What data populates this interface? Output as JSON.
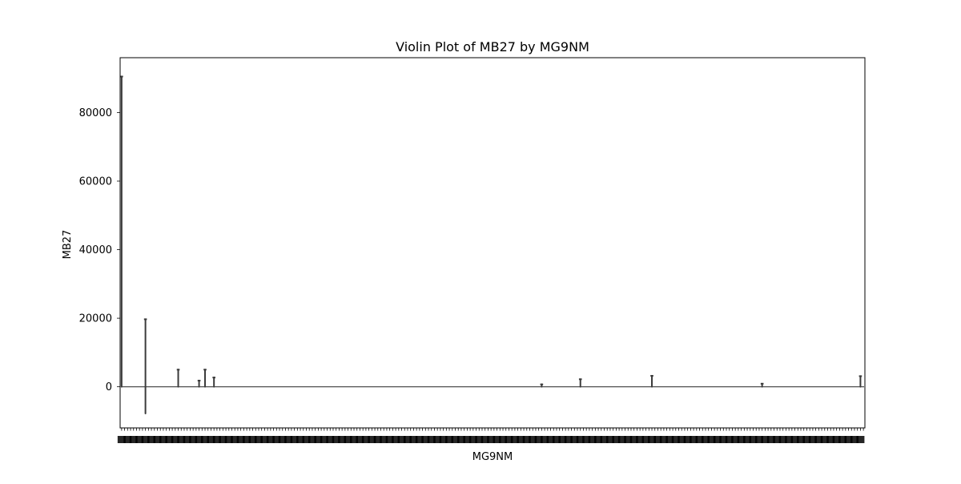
{
  "chart_data": {
    "type": "violin",
    "title": "Violin Plot of MB27 by MG9NM",
    "xlabel": "MG9NM",
    "ylabel": "MB27",
    "ylim": [
      -12000,
      96000
    ],
    "yticks": [
      0,
      20000,
      40000,
      60000,
      80000
    ],
    "ytick_labels": [
      "0",
      "20000",
      "40000",
      "60000",
      "80000"
    ],
    "grid": false,
    "legend": "none",
    "category_count": 250,
    "xtick_labels_legible": false,
    "categories_note": "x tick labels overlap and are illegible",
    "colors": {
      "violin": "#3b3b3b",
      "axis": "#000000",
      "background": "#ffffff"
    },
    "violins": [
      {
        "index": 0,
        "min": 0,
        "max": 90500
      },
      {
        "index": 8,
        "min": -7800,
        "max": 19700
      },
      {
        "index": 19,
        "min": 0,
        "max": 5000
      },
      {
        "index": 26,
        "min": 0,
        "max": 1800
      },
      {
        "index": 28,
        "min": 0,
        "max": 5000
      },
      {
        "index": 31,
        "min": 0,
        "max": 2700
      },
      {
        "index": 141,
        "min": 0,
        "max": 700
      },
      {
        "index": 154,
        "min": 0,
        "max": 2200
      },
      {
        "index": 178,
        "min": 0,
        "max": 3200
      },
      {
        "index": 215,
        "min": 0,
        "max": 900
      },
      {
        "index": 248,
        "min": 0,
        "max": 3100
      }
    ],
    "baseline_value": 0
  }
}
